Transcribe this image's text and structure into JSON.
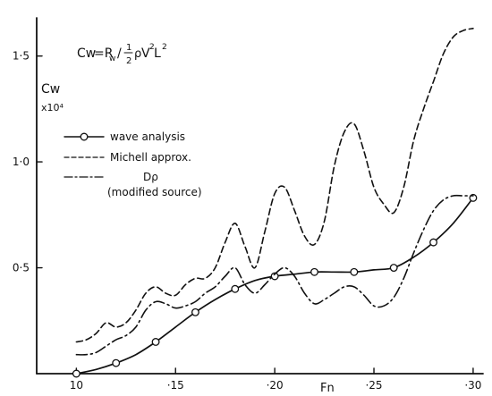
{
  "chart_data": {
    "type": "line",
    "ylabel": "Cw",
    "yunit": "x10⁴",
    "xlabel": "Fn",
    "formula": {
      "lhs": "Cw",
      "eq": "=R",
      "sub": "w",
      "div": "/",
      "num": "1",
      "den": "2",
      "rho": "ρ",
      "v": "V",
      "l": "L",
      "exp": "2",
      "exp2": "2"
    },
    "xlim": [
      0.08,
      0.305
    ],
    "ylim": [
      0,
      1.68
    ],
    "x_ticks": [
      {
        "v": 0.1,
        "label": "10"
      },
      {
        "v": 0.15,
        "label": "·15"
      },
      {
        "v": 0.2,
        "label": "·20"
      },
      {
        "v": 0.25,
        "label": "·25"
      },
      {
        "v": 0.3,
        "label": "·30"
      }
    ],
    "y_ticks": [
      {
        "v": 0.5,
        "label": "0·5"
      },
      {
        "v": 1.0,
        "label": "1·0"
      },
      {
        "v": 1.5,
        "label": "1·5"
      }
    ],
    "legend": [
      {
        "label": "wave analysis"
      },
      {
        "label": "Michell approx."
      },
      {
        "label": "Dρ"
      },
      {
        "label": "(modified source)"
      }
    ],
    "series": [
      {
        "style": "solid-circles",
        "x": [
          0.1,
          0.11,
          0.12,
          0.13,
          0.14,
          0.15,
          0.16,
          0.17,
          0.18,
          0.19,
          0.2,
          0.21,
          0.22,
          0.23,
          0.24,
          0.25,
          0.26,
          0.27,
          0.28,
          0.29,
          0.3
        ],
        "y": [
          0.0,
          0.02,
          0.05,
          0.09,
          0.15,
          0.22,
          0.29,
          0.35,
          0.4,
          0.44,
          0.46,
          0.47,
          0.48,
          0.48,
          0.48,
          0.49,
          0.5,
          0.55,
          0.62,
          0.71,
          0.83
        ],
        "markers": [
          0.1,
          0.12,
          0.14,
          0.16,
          0.18,
          0.2,
          0.22,
          0.24,
          0.26,
          0.28,
          0.3
        ]
      },
      {
        "style": "dashed",
        "x": [
          0.1,
          0.105,
          0.11,
          0.115,
          0.12,
          0.125,
          0.13,
          0.135,
          0.14,
          0.145,
          0.15,
          0.155,
          0.16,
          0.165,
          0.17,
          0.175,
          0.18,
          0.185,
          0.19,
          0.195,
          0.2,
          0.205,
          0.21,
          0.215,
          0.22,
          0.225,
          0.23,
          0.235,
          0.24,
          0.245,
          0.25,
          0.255,
          0.26,
          0.265,
          0.27,
          0.275,
          0.28,
          0.285,
          0.29,
          0.295,
          0.3
        ],
        "y": [
          0.15,
          0.16,
          0.19,
          0.24,
          0.22,
          0.24,
          0.3,
          0.38,
          0.41,
          0.38,
          0.37,
          0.42,
          0.45,
          0.45,
          0.5,
          0.62,
          0.71,
          0.6,
          0.5,
          0.67,
          0.85,
          0.88,
          0.77,
          0.65,
          0.61,
          0.72,
          0.98,
          1.14,
          1.18,
          1.05,
          0.88,
          0.8,
          0.76,
          0.88,
          1.1,
          1.25,
          1.38,
          1.51,
          1.59,
          1.62,
          1.63
        ]
      },
      {
        "style": "dash-dot",
        "x": [
          0.1,
          0.105,
          0.11,
          0.115,
          0.12,
          0.125,
          0.13,
          0.135,
          0.14,
          0.145,
          0.15,
          0.155,
          0.16,
          0.165,
          0.17,
          0.175,
          0.18,
          0.185,
          0.19,
          0.195,
          0.2,
          0.205,
          0.21,
          0.215,
          0.22,
          0.225,
          0.23,
          0.235,
          0.24,
          0.245,
          0.25,
          0.255,
          0.26,
          0.265,
          0.27,
          0.275,
          0.28,
          0.285,
          0.29,
          0.295,
          0.3
        ],
        "y": [
          0.09,
          0.09,
          0.1,
          0.13,
          0.16,
          0.18,
          0.22,
          0.3,
          0.34,
          0.33,
          0.31,
          0.32,
          0.34,
          0.38,
          0.41,
          0.46,
          0.5,
          0.42,
          0.38,
          0.42,
          0.47,
          0.5,
          0.46,
          0.38,
          0.33,
          0.35,
          0.38,
          0.41,
          0.41,
          0.37,
          0.32,
          0.32,
          0.36,
          0.45,
          0.57,
          0.68,
          0.77,
          0.82,
          0.84,
          0.84,
          0.84
        ]
      }
    ]
  }
}
